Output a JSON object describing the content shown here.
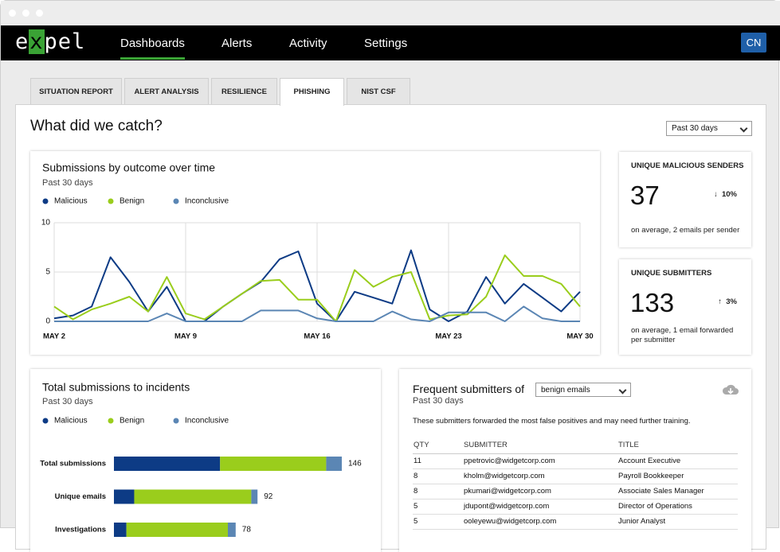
{
  "nav": {
    "logo": [
      "e",
      "x",
      "pel"
    ],
    "items": [
      "Dashboards",
      "Alerts",
      "Activity",
      "Settings"
    ],
    "user": "CN"
  },
  "tabs": [
    "SITUATION REPORT",
    "ALERT ANALYSIS",
    "RESILIENCE",
    "PHISHING",
    "NIST CSF"
  ],
  "heading": "What did we catch?",
  "range_select": "Past 30 days",
  "stats": [
    {
      "title": "UNIQUE MALICIOUS SENDERS",
      "value": 37,
      "change": "10%",
      "note": "on average, 2 emails per sender"
    },
    {
      "title": "UNIQUE SUBMITTERS",
      "value": 133,
      "change": "3%",
      "note": "on average, 1 email forwarded per submitter"
    }
  ],
  "chart_data": [
    {
      "type": "line",
      "title": "Submissions by outcome over time",
      "subtitle": "Past 30 days",
      "x": [
        2,
        3,
        4,
        5,
        6,
        7,
        8,
        9,
        10,
        11,
        12,
        13,
        14,
        15,
        16,
        17,
        18,
        19,
        20,
        21,
        22,
        23,
        24,
        25,
        26,
        27,
        28,
        29,
        30
      ],
      "xlim": [
        2,
        30
      ],
      "xticks": [
        {
          "value": 2,
          "label": "MAY 2"
        },
        {
          "value": 9,
          "label": "MAY 9"
        },
        {
          "value": 16,
          "label": "MAY 16"
        },
        {
          "value": 23,
          "label": "MAY 23"
        },
        {
          "value": 30,
          "label": "MAY 30"
        }
      ],
      "ylim": [
        0,
        10
      ],
      "yticks": [
        0,
        5,
        10
      ],
      "grid": true,
      "series": [
        {
          "name": "Malicious",
          "color": "#0d3b85",
          "values": [
            0.3,
            0.6,
            1.5,
            6.5,
            4,
            1,
            3.5,
            0,
            0,
            1.5,
            2.8,
            4,
            6.3,
            7.1,
            1.8,
            0,
            3,
            2.4,
            1.8,
            7.2,
            1.2,
            0,
            1,
            4.5,
            1.8,
            3.8,
            2.4,
            1,
            3
          ]
        },
        {
          "name": "Benign",
          "color": "#9acd1c",
          "values": [
            1.5,
            0.2,
            1.2,
            1.8,
            2.5,
            1,
            4.5,
            0.8,
            0.2,
            1.5,
            2.8,
            4.1,
            4.2,
            2.2,
            2.2,
            0,
            5.2,
            3.5,
            4.5,
            5,
            0.2,
            0.6,
            0.7,
            2.5,
            6.7,
            4.6,
            4.6,
            3.8,
            1.5
          ]
        },
        {
          "name": "Inconclusive",
          "color": "#5b86b4",
          "values": [
            0,
            0,
            0,
            0,
            0,
            0,
            0.8,
            0,
            0,
            0,
            0,
            1.1,
            1.1,
            1.1,
            0.3,
            0,
            0,
            0,
            1,
            0.2,
            0,
            0.9,
            0.9,
            0.9,
            0,
            1.5,
            0.3,
            0,
            0
          ]
        }
      ]
    },
    {
      "type": "bar",
      "orientation": "horizontal",
      "stacked": true,
      "title": "Total submissions to incidents",
      "subtitle": "Past 30 days",
      "categories": [
        "Total submissions",
        "Unique emails",
        "Investigations"
      ],
      "series": [
        {
          "name": "Malicious",
          "color": "#0d3b85",
          "values": [
            68,
            13,
            8
          ]
        },
        {
          "name": "Benign",
          "color": "#9acd1c",
          "values": [
            68,
            75,
            65
          ]
        },
        {
          "name": "Inconclusive",
          "color": "#5b86b4",
          "values": [
            10,
            4,
            5
          ]
        }
      ],
      "totals": [
        146,
        92,
        78
      ]
    }
  ],
  "submitters": {
    "title": "Frequent submitters of",
    "filter": "benign emails",
    "subtitle": "Past 30 days",
    "description": "These submitters forwarded the most false positives and may need further training.",
    "columns": [
      "QTY",
      "SUBMITTER",
      "TITLE"
    ],
    "rows": [
      [
        11,
        "ppetrovic@widgetcorp.com",
        "Account Executive"
      ],
      [
        8,
        "kholm@widgetcorp.com",
        "Payroll Bookkeeper"
      ],
      [
        8,
        "pkumari@widgetcorp.com",
        "Associate Sales Manager"
      ],
      [
        5,
        "jdupont@widgetcorp.com",
        "Director of Operations"
      ],
      [
        5,
        "ooleyewu@widgetcorp.com",
        "Junior Analyst"
      ]
    ]
  }
}
